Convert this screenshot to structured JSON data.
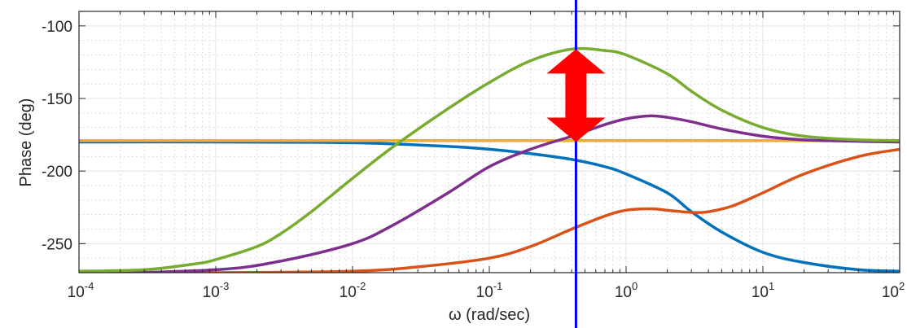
{
  "chart_data": {
    "type": "line",
    "title": "",
    "xlabel": "ω  (rad/sec)",
    "ylabel": "Phase (deg)",
    "xscale": "log",
    "xlim": [
      0.0001,
      100
    ],
    "ylim": [
      -270,
      -90
    ],
    "xticks": [
      {
        "value": 0.0001,
        "base": "10",
        "exp": "-4"
      },
      {
        "value": 0.001,
        "base": "10",
        "exp": "-3"
      },
      {
        "value": 0.01,
        "base": "10",
        "exp": "-2"
      },
      {
        "value": 0.1,
        "base": "10",
        "exp": "-1"
      },
      {
        "value": 1,
        "base": "10",
        "exp": "0"
      },
      {
        "value": 10,
        "base": "10",
        "exp": "1"
      },
      {
        "value": 100,
        "base": "10",
        "exp": "2"
      }
    ],
    "yticks": [
      -100,
      -150,
      -200,
      -250
    ],
    "grid": true,
    "series": [
      {
        "color": "#0072BD",
        "points": [
          [
            0.0001,
            -180
          ],
          [
            0.001,
            -180
          ],
          [
            0.01,
            -180.5
          ],
          [
            0.05,
            -183
          ],
          [
            0.1,
            -185
          ],
          [
            0.2,
            -188
          ],
          [
            0.4,
            -192
          ],
          [
            0.7,
            -197
          ],
          [
            1,
            -202
          ],
          [
            2,
            -215
          ],
          [
            3,
            -228
          ],
          [
            5,
            -242
          ],
          [
            10,
            -256
          ],
          [
            20,
            -263
          ],
          [
            50,
            -268
          ],
          [
            100,
            -269
          ]
        ]
      },
      {
        "color": "#D95319",
        "points": [
          [
            0.0001,
            -270
          ],
          [
            0.001,
            -270
          ],
          [
            0.01,
            -269
          ],
          [
            0.03,
            -266
          ],
          [
            0.1,
            -260
          ],
          [
            0.2,
            -252
          ],
          [
            0.4,
            -240
          ],
          [
            0.7,
            -231
          ],
          [
            1,
            -227
          ],
          [
            1.5,
            -226
          ],
          [
            2,
            -227
          ],
          [
            3,
            -228.5
          ],
          [
            4,
            -228
          ],
          [
            6,
            -224
          ],
          [
            10,
            -215
          ],
          [
            20,
            -202
          ],
          [
            50,
            -190
          ],
          [
            100,
            -185
          ]
        ]
      },
      {
        "color": "#EDB120",
        "points": [
          [
            0.0001,
            -179
          ],
          [
            100,
            -179
          ]
        ]
      },
      {
        "color": "#7E2F8E",
        "points": [
          [
            0.0001,
            -271
          ],
          [
            0.001,
            -268
          ],
          [
            0.003,
            -262
          ],
          [
            0.01,
            -250
          ],
          [
            0.02,
            -237
          ],
          [
            0.05,
            -215
          ],
          [
            0.1,
            -197
          ],
          [
            0.2,
            -185
          ],
          [
            0.4,
            -176
          ],
          [
            0.7,
            -168
          ],
          [
            1,
            -164
          ],
          [
            1.5,
            -162
          ],
          [
            2,
            -163
          ],
          [
            3,
            -166
          ],
          [
            5,
            -171
          ],
          [
            10,
            -176
          ],
          [
            20,
            -178.5
          ],
          [
            50,
            -179.5
          ],
          [
            100,
            -180
          ]
        ]
      },
      {
        "color": "#77AC30",
        "points": [
          [
            0.0001,
            -269
          ],
          [
            0.0003,
            -268
          ],
          [
            0.0007,
            -264
          ],
          [
            0.001,
            -261
          ],
          [
            0.002,
            -252
          ],
          [
            0.003,
            -243
          ],
          [
            0.005,
            -228
          ],
          [
            0.01,
            -205
          ],
          [
            0.02,
            -183
          ],
          [
            0.05,
            -157
          ],
          [
            0.1,
            -139
          ],
          [
            0.2,
            -124
          ],
          [
            0.4,
            -116
          ],
          [
            0.7,
            -117
          ],
          [
            1,
            -120
          ],
          [
            2,
            -133
          ],
          [
            3,
            -145
          ],
          [
            5,
            -158
          ],
          [
            10,
            -170
          ],
          [
            20,
            -176
          ],
          [
            50,
            -178.5
          ],
          [
            100,
            -179
          ]
        ]
      }
    ],
    "annotations": [
      {
        "kind": "vertical-line",
        "x": 0.43,
        "color": "#0000FF"
      },
      {
        "kind": "double-arrow",
        "x": 0.43,
        "y_from": -116,
        "y_to": -180,
        "color": "#FF0000"
      }
    ]
  }
}
